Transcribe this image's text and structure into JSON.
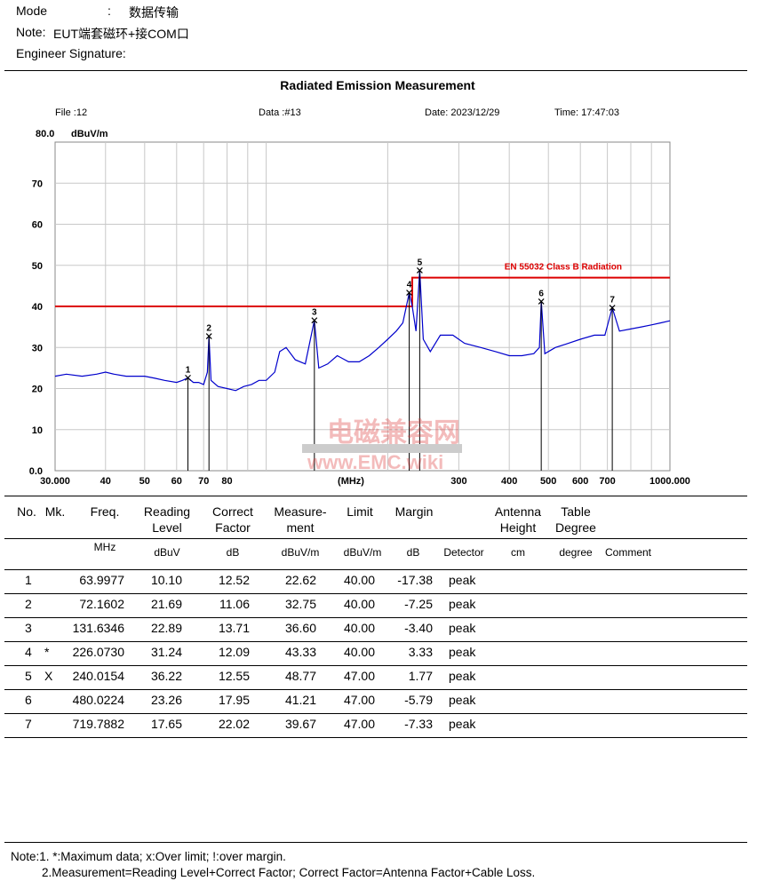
{
  "header": {
    "mode_label": "Mode",
    "mode_sep": ":",
    "mode_value": "数据传输",
    "note_label": "Note:",
    "note_value": "EUT端套磁环+接COM口",
    "engineer_label": "Engineer Signature:"
  },
  "report": {
    "title": "Radiated Emission Measurement",
    "file": "File :12",
    "data": "Data :#13",
    "date": "Date: 2023/12/29",
    "time": "Time: 17:47:03"
  },
  "chart_data": {
    "type": "line",
    "title": "Radiated Emission Measurement",
    "ylabel": "dBuV/m",
    "xlabel": "(MHz)",
    "x_scale": "log",
    "xlim": [
      30,
      1000
    ],
    "ylim": [
      0,
      80
    ],
    "y_top_label": "80.0",
    "y_ticks": [
      "0.0",
      "10",
      "20",
      "30",
      "40",
      "50",
      "60",
      "70"
    ],
    "x_ticks": [
      "30.000",
      "40",
      "50",
      "60",
      "70",
      "80",
      "300",
      "400",
      "500",
      "600",
      "700",
      "1000.000"
    ],
    "limit": {
      "name": "EN 55032 Class B Radiation",
      "segments": [
        {
          "x": [
            30,
            230
          ],
          "y": 40
        },
        {
          "x": [
            230,
            1000
          ],
          "y": 47
        }
      ]
    },
    "series": [
      {
        "x": [
          30,
          32,
          35,
          38,
          40,
          42,
          45,
          48,
          50,
          53,
          56,
          60,
          62,
          64,
          66,
          68,
          70,
          71.5,
          72.16,
          73,
          76,
          80,
          84,
          88,
          92,
          96,
          100,
          105,
          108,
          112,
          118,
          125,
          131.63,
          135,
          142,
          150,
          160,
          170,
          180,
          190,
          200,
          210,
          218,
          226.07,
          230,
          235,
          240.02,
          245,
          255,
          270,
          290,
          310,
          340,
          370,
          400,
          430,
          460,
          475,
          480.02,
          490,
          520,
          560,
          600,
          650,
          690,
          719.79,
          750,
          800,
          850,
          900,
          950,
          1000
        ],
        "y": [
          23,
          23.5,
          23,
          23.5,
          24,
          23.5,
          23,
          23,
          23,
          22.5,
          22,
          21.5,
          22,
          22.6,
          21.5,
          21.5,
          21,
          24,
          32.75,
          22,
          20.5,
          20,
          19.5,
          20.5,
          21,
          22,
          22,
          24,
          29,
          30,
          27,
          26,
          36.6,
          25,
          26,
          28,
          26.5,
          26.5,
          28,
          30,
          32,
          34,
          36,
          43.33,
          40,
          34,
          48.77,
          32,
          29,
          33,
          33,
          31,
          30,
          29,
          28,
          28,
          28.5,
          30,
          41.21,
          28.5,
          30,
          31,
          32,
          33,
          33,
          39.67,
          34,
          34.5,
          35,
          35.5,
          36,
          36.5
        ]
      }
    ],
    "markers": [
      {
        "label": "1",
        "x": 63.9977,
        "y": 22.62
      },
      {
        "label": "2",
        "x": 72.1602,
        "y": 32.75
      },
      {
        "label": "3",
        "x": 131.6346,
        "y": 36.6
      },
      {
        "label": "4",
        "x": 226.073,
        "y": 43.33
      },
      {
        "label": "5",
        "x": 240.0154,
        "y": 48.77
      },
      {
        "label": "6",
        "x": 480.0224,
        "y": 41.21
      },
      {
        "label": "7",
        "x": 719.7882,
        "y": 39.67
      }
    ],
    "colors": {
      "trace": "#0000cc",
      "limit": "#dd0000",
      "markers": "#000000"
    },
    "grid": true
  },
  "watermark": {
    "line1": "电磁兼容网",
    "line2": "www.EMC.wiki"
  },
  "table": {
    "headers": [
      {
        "l1": "No.",
        "l2": ""
      },
      {
        "l1": "Mk.",
        "l2": ""
      },
      {
        "l1": "Freq.",
        "l2": ""
      },
      {
        "l1": "Reading",
        "l2": "Level"
      },
      {
        "l1": "Correct",
        "l2": "Factor"
      },
      {
        "l1": "Measure-",
        "l2": "ment"
      },
      {
        "l1": "Limit",
        "l2": ""
      },
      {
        "l1": "Margin",
        "l2": ""
      },
      {
        "l1": "Antenna",
        "l2": "Height"
      },
      {
        "l1": "Table",
        "l2": "Degree"
      }
    ],
    "units": [
      "MHz",
      "dBuV",
      "dB",
      "dBuV/m",
      "dBuV/m",
      "dB",
      "Detector",
      "cm",
      "degree",
      "Comment"
    ],
    "rows": [
      {
        "no": "1",
        "mk": "",
        "freq": "63.9977",
        "reading": "10.10",
        "factor": "12.52",
        "meas": "22.62",
        "limit": "40.00",
        "margin": "-17.38",
        "det": "peak"
      },
      {
        "no": "2",
        "mk": "",
        "freq": "72.1602",
        "reading": "21.69",
        "factor": "11.06",
        "meas": "32.75",
        "limit": "40.00",
        "margin": "-7.25",
        "det": "peak"
      },
      {
        "no": "3",
        "mk": "",
        "freq": "131.6346",
        "reading": "22.89",
        "factor": "13.71",
        "meas": "36.60",
        "limit": "40.00",
        "margin": "-3.40",
        "det": "peak"
      },
      {
        "no": "4",
        "mk": "*",
        "freq": "226.0730",
        "reading": "31.24",
        "factor": "12.09",
        "meas": "43.33",
        "limit": "40.00",
        "margin": "3.33",
        "det": "peak"
      },
      {
        "no": "5",
        "mk": "X",
        "freq": "240.0154",
        "reading": "36.22",
        "factor": "12.55",
        "meas": "48.77",
        "limit": "47.00",
        "margin": "1.77",
        "det": "peak"
      },
      {
        "no": "6",
        "mk": "",
        "freq": "480.0224",
        "reading": "23.26",
        "factor": "17.95",
        "meas": "41.21",
        "limit": "47.00",
        "margin": "-5.79",
        "det": "peak"
      },
      {
        "no": "7",
        "mk": "",
        "freq": "719.7882",
        "reading": "17.65",
        "factor": "22.02",
        "meas": "39.67",
        "limit": "47.00",
        "margin": "-7.33",
        "det": "peak"
      }
    ]
  },
  "notes": {
    "line1": "Note:1. *:Maximum data; x:Over limit; !:over margin.",
    "line2": "2.Measurement=Reading Level+Correct Factor; Correct Factor=Antenna Factor+Cable Loss."
  }
}
